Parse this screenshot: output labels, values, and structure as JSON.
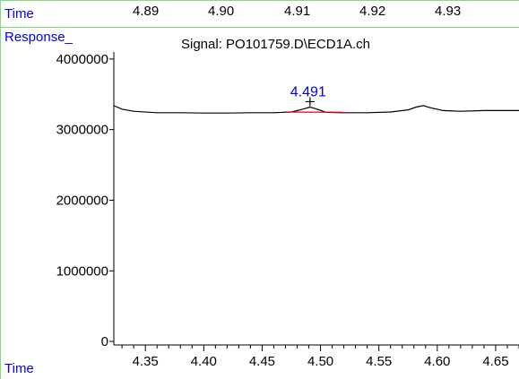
{
  "header": {
    "time_label": "Time",
    "response_label": "Response_",
    "signal_title": "Signal: PO101759.D\\ECD1A.ch",
    "top_ticks": [
      "4.89",
      "4.90",
      "4.91",
      "4.92",
      "4.93"
    ]
  },
  "footer": {
    "time_label": "Time"
  },
  "colors": {
    "label_blue": "#0000ee",
    "frame_green": "#7fdf7f",
    "trace": "#000000",
    "baseline": "#dd0000"
  },
  "chart_data": {
    "type": "line",
    "title": "Signal: PO101759.D\\ECD1A.ch",
    "xlabel": "Time",
    "ylabel": "Response_",
    "xlim": [
      4.323,
      4.67
    ],
    "ylim": [
      -50000,
      4100000
    ],
    "x_ticks": [
      4.35,
      4.4,
      4.45,
      4.5,
      4.55,
      4.6,
      4.65
    ],
    "x_tick_labels": [
      "4.35",
      "4.40",
      "4.45",
      "4.50",
      "4.55",
      "4.60",
      "4.65"
    ],
    "y_ticks": [
      0,
      1000000,
      2000000,
      3000000,
      4000000
    ],
    "y_tick_labels": [
      "0",
      "1000000",
      "2000000",
      "3000000",
      "4000000"
    ],
    "series": [
      {
        "x": [
          4.323,
          4.33,
          4.34,
          4.36,
          4.38,
          4.4,
          4.42,
          4.44,
          4.46,
          4.475,
          4.485,
          4.491,
          4.497,
          4.505,
          4.52,
          4.54,
          4.56,
          4.575,
          4.582,
          4.588,
          4.594,
          4.605,
          4.62,
          4.64,
          4.67
        ],
        "y": [
          3340000,
          3290000,
          3260000,
          3240000,
          3240000,
          3235000,
          3235000,
          3240000,
          3240000,
          3250000,
          3290000,
          3320000,
          3290000,
          3245000,
          3240000,
          3240000,
          3250000,
          3280000,
          3320000,
          3340000,
          3310000,
          3270000,
          3260000,
          3270000,
          3270000
        ]
      }
    ],
    "peak": {
      "label": "4.491",
      "x": 4.491,
      "y": 3320000
    },
    "baseline": {
      "x": [
        4.47,
        4.525
      ],
      "y": [
        3250000,
        3245000
      ]
    }
  }
}
